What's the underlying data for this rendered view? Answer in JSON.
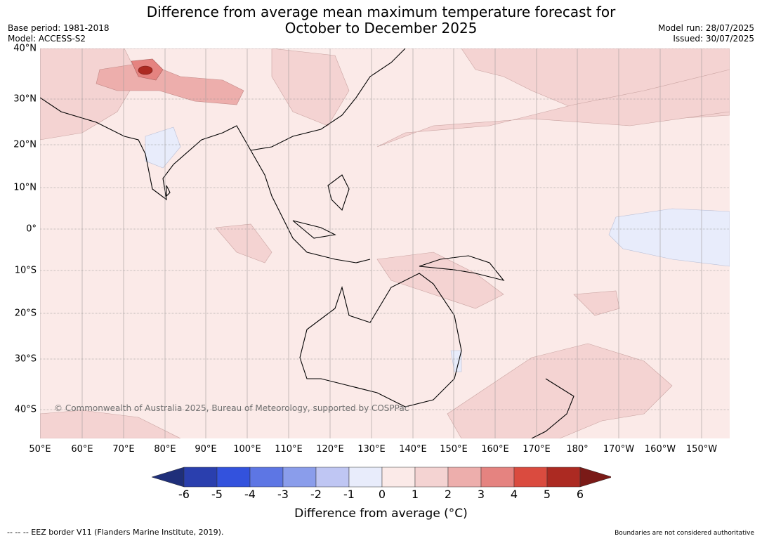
{
  "title": {
    "line1": "Difference from average mean maximum temperature forecast for",
    "line2": "October to December 2025"
  },
  "meta_left": {
    "base_period": "Base period: 1981-2018",
    "model": "Model: ACCESS-S2"
  },
  "meta_right": {
    "model_run": "Model run: 28/07/2025",
    "issued": "Issued: 30/07/2025"
  },
  "map": {
    "lat_labels": [
      "40°N",
      "30°N",
      "20°N",
      "10°N",
      "0°",
      "10°S",
      "20°S",
      "30°S",
      "40°S"
    ],
    "lon_labels": [
      "50°E",
      "60°E",
      "70°E",
      "80°E",
      "90°E",
      "100°E",
      "110°E",
      "120°E",
      "130°E",
      "140°E",
      "150°E",
      "160°E",
      "170°E",
      "180°",
      "170°W",
      "160°W",
      "150°W"
    ],
    "copyright": "© Commonwealth of Australia 2025, Bureau of Meteorology, supported by COSPPac"
  },
  "colorbar": {
    "colors": [
      "#1f2f7a",
      "#2a3fae",
      "#3352dd",
      "#5d76e4",
      "#8a9deb",
      "#bfc6f3",
      "#e8ecfb",
      "#fbeae8",
      "#f4d3d2",
      "#edaeac",
      "#e58380",
      "#da4b3f",
      "#ac2a22",
      "#7a1a17"
    ],
    "ticks": [
      "-6",
      "-5",
      "-4",
      "-3",
      "-2",
      "-1",
      "0",
      "1",
      "2",
      "3",
      "4",
      "5",
      "6"
    ],
    "label": "Difference from average (°C)"
  },
  "footer": {
    "eez": "--  --  -- EEZ border V11 (Flanders Marine Institute, 2019).",
    "boundary_note": "Boundaries are not considered authoritative"
  }
}
